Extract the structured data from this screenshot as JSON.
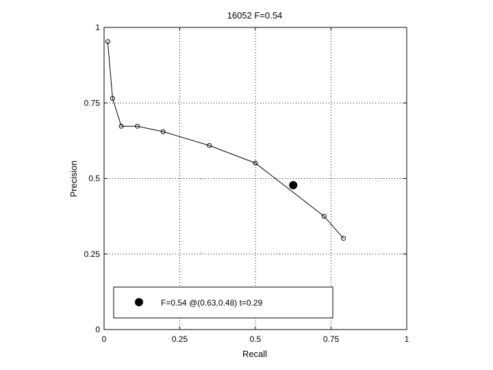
{
  "chart_data": {
    "type": "line",
    "title": "16052 F=0.54",
    "xlabel": "Recall",
    "ylabel": "Precision",
    "xlim": [
      0,
      1
    ],
    "ylim": [
      0,
      1
    ],
    "xticks": [
      "0",
      "0.25",
      "0.5",
      "0.75",
      "1"
    ],
    "yticks": [
      "0",
      "0.25",
      "0.5",
      "0.75",
      "1"
    ],
    "xtick_values": [
      0,
      0.25,
      0.5,
      0.75,
      1
    ],
    "ytick_values": [
      0,
      0.25,
      0.5,
      0.75,
      1
    ],
    "grid": true,
    "series": [
      {
        "x": [
          0.012,
          0.028,
          0.057,
          0.11,
          0.195,
          0.348,
          0.5,
          0.727,
          0.791
        ],
        "y": [
          0.953,
          0.765,
          0.673,
          0.673,
          0.655,
          0.609,
          0.551,
          0.375,
          0.302
        ],
        "color": "#000000",
        "marker": "open-circle"
      }
    ],
    "best_point": {
      "x": 0.625,
      "y": 0.478,
      "marker": "filled-circle"
    },
    "legend": {
      "text": "F=0.54 @(0.63,0.48) t=0.29",
      "placement": "bottom-left"
    }
  }
}
